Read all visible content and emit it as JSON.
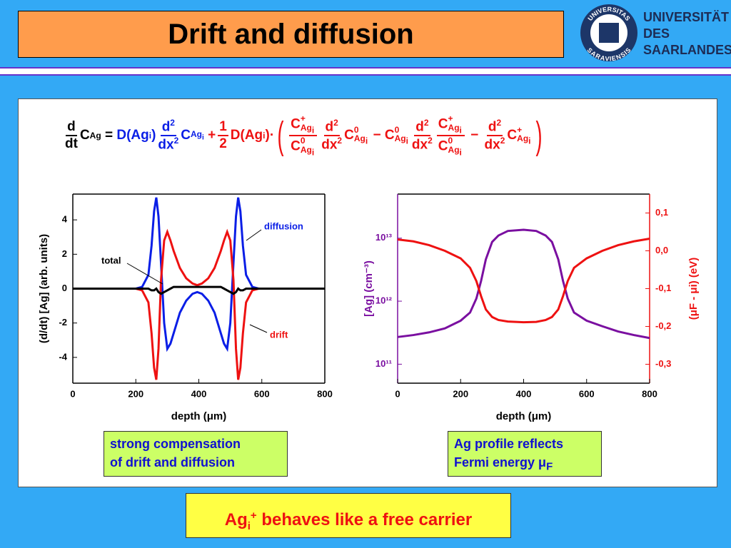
{
  "header": {
    "title": "Drift and diffusion",
    "logo_lines": [
      "UNIVERSITÄT",
      "DES",
      "SAARLANDES"
    ],
    "seal_top": "UNIVERSITAS",
    "seal_bottom": "SARAVIENSIS"
  },
  "equation": [
    "d",
    "dt",
    "C",
    "Ag",
    "=",
    "D",
    "(",
    "Ag",
    "i",
    ")",
    "d",
    "2",
    "dx",
    "2",
    "C",
    "Ag",
    "i",
    "+",
    "1",
    "2",
    "D",
    "(",
    "Ag",
    "i",
    ")",
    "·",
    "(",
    "C",
    "+",
    "Ag",
    "i",
    "C",
    "0",
    "Ag",
    "i",
    "d",
    "2",
    "dx",
    "2",
    "C",
    "0",
    "Ag",
    "i",
    "−",
    "C",
    "0",
    "Ag",
    "i",
    "d",
    "2",
    "dx",
    "2",
    "C",
    "+",
    "Ag",
    "i",
    "C",
    "0",
    "Ag",
    "i",
    "−",
    "d",
    "2",
    "dx",
    "2",
    "C",
    "+",
    "Ag",
    "i",
    ")"
  ],
  "chart_data": [
    {
      "type": "line",
      "xlabel": "depth  (μm)",
      "ylabel": "(d/dt) [Ag]  (arb. units)",
      "xlim": [
        0,
        800
      ],
      "xticks": [
        0,
        200,
        400,
        600,
        800
      ],
      "ylim": [
        -5.5,
        5.5
      ],
      "yticks": [
        -4,
        -2,
        0,
        2,
        4
      ],
      "x": [
        0,
        100,
        200,
        220,
        240,
        250,
        258,
        265,
        272,
        280,
        290,
        300,
        310,
        320,
        340,
        360,
        380,
        395,
        410,
        430,
        450,
        470,
        480,
        490,
        500,
        510,
        518,
        525,
        532,
        540,
        550,
        570,
        590,
        690,
        800
      ],
      "series": [
        {
          "name": "diffusion",
          "color": "#0a1ee6",
          "values": [
            0,
            0,
            0,
            0.1,
            0.8,
            2.5,
            4.5,
            5.3,
            4.2,
            1.5,
            -2,
            -3.5,
            -3.2,
            -2.6,
            -1.4,
            -0.7,
            -0.3,
            -0.2,
            -0.3,
            -0.7,
            -1.4,
            -2.6,
            -3.2,
            -3.5,
            -2,
            1.5,
            4.2,
            5.3,
            4.5,
            2.5,
            0.8,
            0.1,
            0,
            0,
            0
          ]
        },
        {
          "name": "drift",
          "color": "#ee1111",
          "values": [
            0,
            0,
            0,
            -0.1,
            -0.8,
            -2.6,
            -4.6,
            -5.3,
            -3.5,
            0.5,
            2.8,
            3.3,
            2.8,
            2.2,
            1.2,
            0.6,
            0.3,
            0.2,
            0.3,
            0.6,
            1.2,
            2.2,
            2.8,
            3.3,
            2.8,
            0.5,
            -3.5,
            -5.3,
            -4.6,
            -2.6,
            -0.8,
            -0.1,
            0,
            0,
            0
          ]
        },
        {
          "name": "total",
          "color": "#000000",
          "values": [
            0,
            0,
            0,
            0,
            0,
            -0.1,
            -0.1,
            0,
            -0.2,
            -0.3,
            -0.2,
            -0.1,
            0,
            0.1,
            0.1,
            0.1,
            0.1,
            0.1,
            0.1,
            0.1,
            0.1,
            0.1,
            0,
            -0.1,
            -0.2,
            -0.3,
            -0.2,
            0,
            -0.1,
            -0.1,
            0,
            0,
            0,
            0,
            0
          ]
        }
      ]
    },
    {
      "type": "line",
      "xlabel": "depth  (μm)",
      "ylabel": "[Ag]  (cm⁻³)",
      "y2label": "(μF - μi)  (eV)",
      "xlim": [
        0,
        800
      ],
      "xticks": [
        0,
        200,
        400,
        600,
        800
      ],
      "ylog": true,
      "ylim": [
        50000000000,
        50000000000000
      ],
      "yticks": [
        {
          "value": 100000000000,
          "label": "10¹¹"
        },
        {
          "value": 1000000000000,
          "label": "10¹²"
        },
        {
          "value": 10000000000000,
          "label": "10¹³"
        }
      ],
      "y2lim": [
        -0.35,
        0.15
      ],
      "y2ticks": [
        {
          "value": 0.1,
          "label": "0,1"
        },
        {
          "value": 0,
          "label": "0,0"
        },
        {
          "value": -0.1,
          "label": "-0,1"
        },
        {
          "value": -0.2,
          "label": "-0,2"
        },
        {
          "value": -0.3,
          "label": "-0,3"
        }
      ],
      "x": [
        0,
        50,
        100,
        150,
        200,
        230,
        250,
        265,
        280,
        300,
        320,
        350,
        400,
        440,
        470,
        490,
        510,
        525,
        540,
        560,
        600,
        650,
        700,
        750,
        800
      ],
      "series": [
        {
          "name": "[Ag]",
          "color": "#7a0fa0",
          "values": [
            270000000000,
            290000000000,
            320000000000,
            370000000000,
            490000000000,
            660000000000,
            1100000000000,
            2100000000000,
            4600000000000,
            8700000000000,
            11000000000000,
            13000000000000,
            13600000000000,
            13000000000000,
            11000000000000,
            8700000000000,
            4600000000000,
            2100000000000,
            1100000000000,
            660000000000,
            490000000000,
            400000000000,
            330000000000,
            290000000000,
            260000000000
          ]
        },
        {
          "name": "μF - μi",
          "color": "#ee1111",
          "axis": "y2",
          "values": [
            0.03,
            0.025,
            0.015,
            0,
            -0.02,
            -0.045,
            -0.08,
            -0.12,
            -0.155,
            -0.175,
            -0.183,
            -0.187,
            -0.189,
            -0.188,
            -0.183,
            -0.175,
            -0.155,
            -0.12,
            -0.08,
            -0.045,
            -0.02,
            0,
            0.015,
            0.025,
            0.032
          ]
        }
      ]
    }
  ],
  "notes": [
    [
      "strong compensation",
      "of drift and diffusion"
    ],
    [
      "Ag profile reflects",
      "Fermi energy μ",
      "F"
    ]
  ],
  "footer": [
    "Ag",
    "i",
    "+",
    " behaves like a free carrier"
  ]
}
